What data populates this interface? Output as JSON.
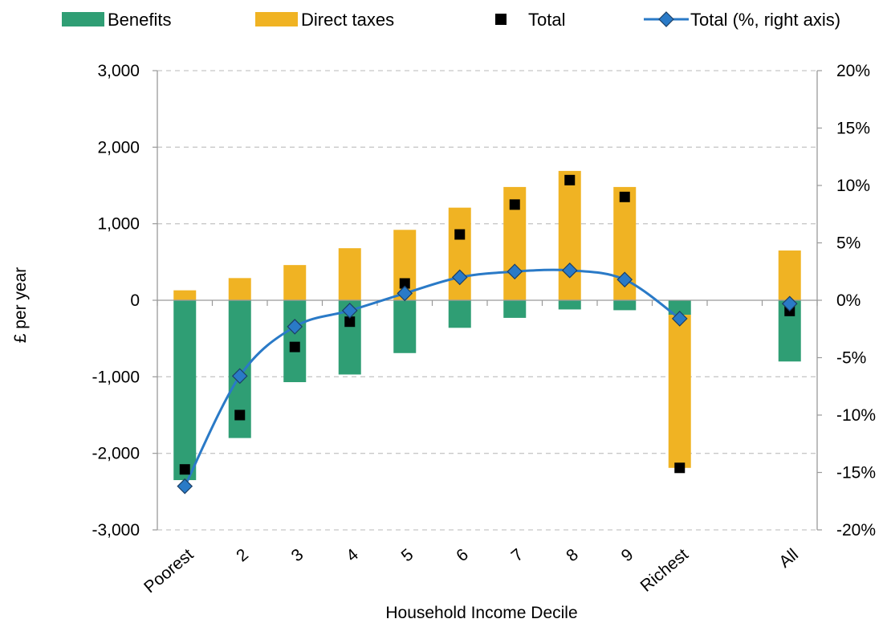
{
  "chart_data": {
    "type": "bar",
    "categories": [
      "Poorest",
      "2",
      "3",
      "4",
      "5",
      "6",
      "7",
      "8",
      "9",
      "Richest",
      "All"
    ],
    "series": [
      {
        "name": "Benefits",
        "kind": "stacked-bar",
        "axis": "left",
        "color": "#2f9e74",
        "values": [
          -2350,
          -1800,
          -1070,
          -970,
          -690,
          -360,
          -230,
          -120,
          -130,
          -190,
          -800
        ]
      },
      {
        "name": "Direct taxes",
        "kind": "stacked-bar",
        "axis": "left",
        "color": "#f0b323",
        "values": [
          130,
          290,
          460,
          680,
          920,
          1210,
          1480,
          1690,
          1480,
          -2000,
          650
        ]
      },
      {
        "name": "Total",
        "kind": "marker-square",
        "axis": "left",
        "color": "#000000",
        "values": [
          -2210,
          -1500,
          -610,
          -280,
          220,
          860,
          1250,
          1570,
          1350,
          -2190,
          -140
        ]
      },
      {
        "name": "Total (%, right axis)",
        "kind": "line-diamond",
        "axis": "right",
        "color": "#2a7ac7",
        "values": [
          -16.2,
          -6.6,
          -2.3,
          -0.9,
          0.6,
          2.0,
          2.5,
          2.6,
          1.8,
          -1.6,
          -0.3
        ]
      }
    ],
    "xlabel": "Household Income Decile",
    "ylabel": "£ per year",
    "ylim": [
      -3000,
      3000
    ],
    "y2lim": [
      -20,
      20
    ],
    "yticks": [
      -3000,
      -2000,
      -1000,
      0,
      1000,
      2000,
      3000
    ],
    "ytick_labels": [
      "-3,000",
      "-2,000",
      "-1,000",
      "0",
      "1,000",
      "2,000",
      "3,000"
    ],
    "y2ticks": [
      -20,
      -15,
      -10,
      -5,
      0,
      5,
      10,
      15,
      20
    ],
    "y2tick_labels": [
      "-20%",
      "-15%",
      "-10%",
      "-5%",
      "0%",
      "5%",
      "10%",
      "15%",
      "20%"
    ],
    "grid": true,
    "legend_position": "top"
  }
}
